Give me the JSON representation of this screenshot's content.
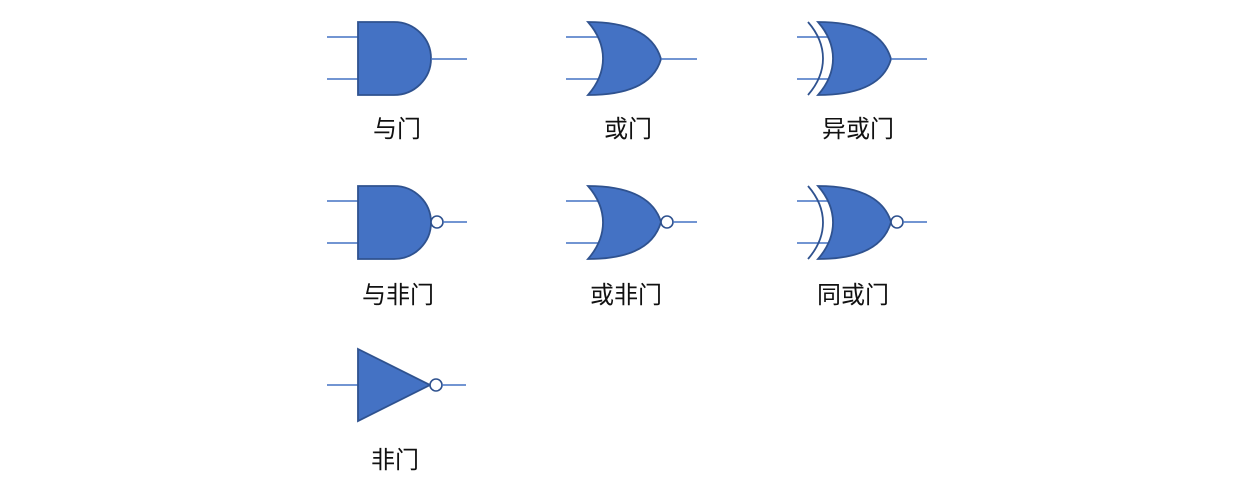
{
  "colors": {
    "fill": "#4472C4",
    "stroke": "#2F528F",
    "bubble_fill": "#ffffff"
  },
  "gates": [
    {
      "type": "and",
      "label": "与门"
    },
    {
      "type": "or",
      "label": "或门"
    },
    {
      "type": "xor",
      "label": "异或门"
    },
    {
      "type": "nand",
      "label": "与非门"
    },
    {
      "type": "nor",
      "label": "或非门"
    },
    {
      "type": "xnor",
      "label": "同或门"
    },
    {
      "type": "not",
      "label": "非门"
    }
  ]
}
